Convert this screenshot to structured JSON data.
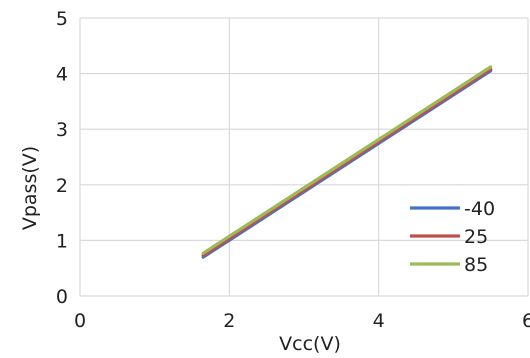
{
  "chart_data": {
    "type": "line",
    "xlabel": "Vcc(V)",
    "ylabel": "Vpass(V)",
    "xlim": [
      0,
      6
    ],
    "ylim": [
      0,
      5
    ],
    "xticks": [
      0,
      2,
      4,
      6
    ],
    "yticks": [
      0,
      1,
      2,
      3,
      4,
      5
    ],
    "xtick_labels": [
      "0",
      "2",
      "4",
      "6"
    ],
    "ytick_labels": [
      "0",
      "1",
      "2",
      "3",
      "4",
      "5"
    ],
    "grid": true,
    "legend_position": "right",
    "series": [
      {
        "name": "-40",
        "color": "#4472c4",
        "x": [
          1.65,
          5.5
        ],
        "y": [
          0.7,
          4.05
        ]
      },
      {
        "name": "25",
        "color": "#c0504d",
        "x": [
          1.65,
          5.5
        ],
        "y": [
          0.73,
          4.08
        ]
      },
      {
        "name": "85",
        "color": "#9bbb59",
        "x": [
          1.65,
          5.5
        ],
        "y": [
          0.77,
          4.12
        ]
      }
    ]
  }
}
